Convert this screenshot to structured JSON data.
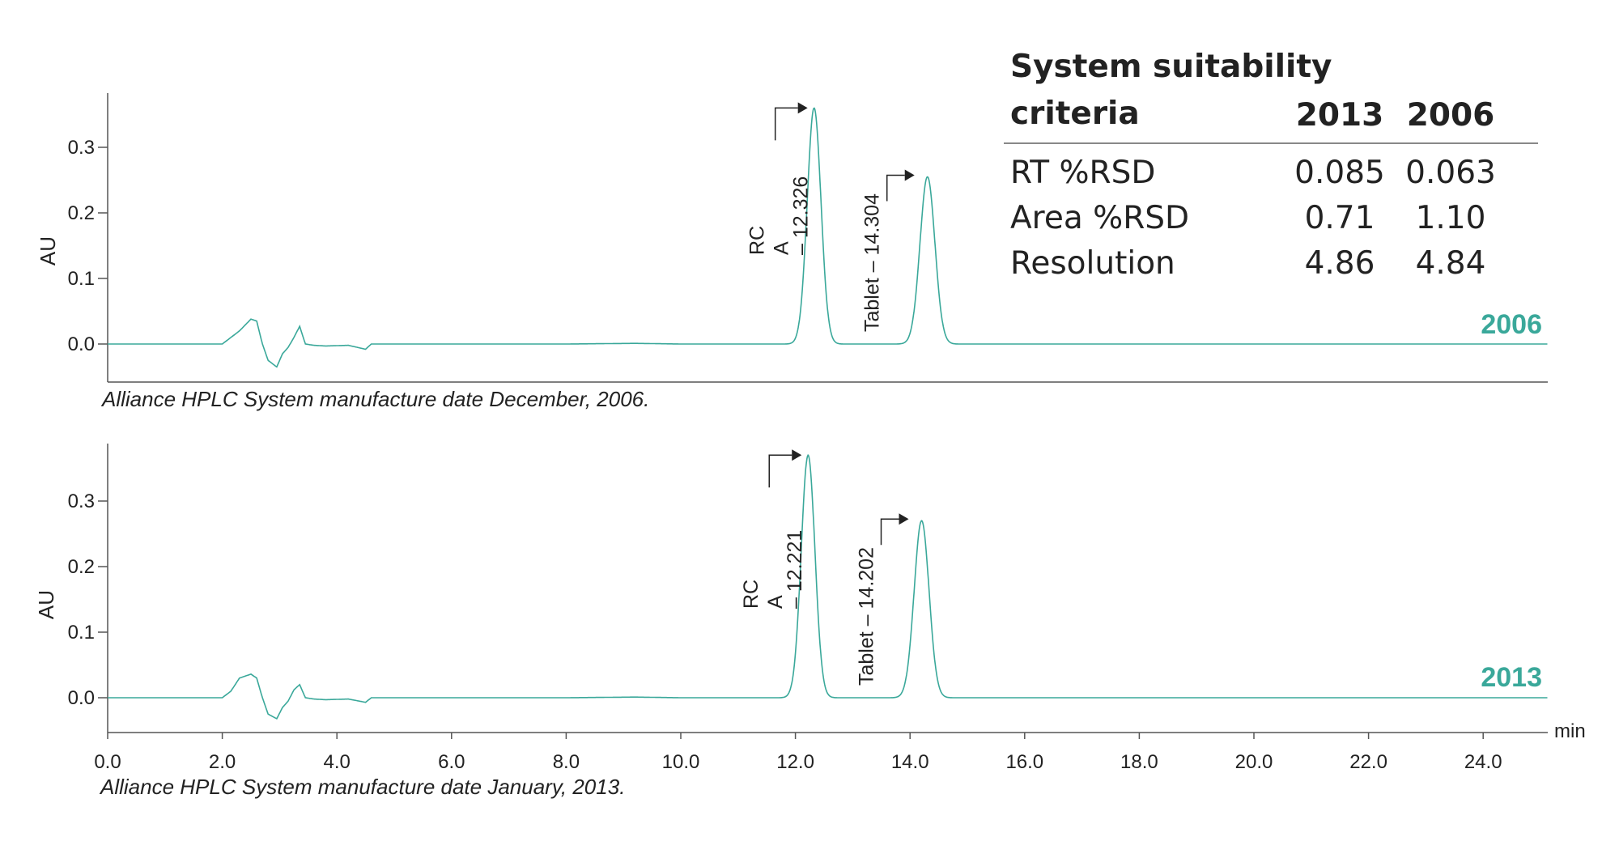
{
  "colors": {
    "trace": "#3aa89a",
    "year_label": "#3aa89a",
    "axis": "#555555",
    "text": "#222222"
  },
  "table": {
    "title": "System suitability criteria",
    "columns": [
      "2013",
      "2006"
    ],
    "rows": [
      {
        "label": "RT %RSD",
        "values": [
          "0.085",
          "0.063"
        ]
      },
      {
        "label": "Area %RSD",
        "values": [
          "0.71",
          "1.10"
        ]
      },
      {
        "label": "Resolution",
        "values": [
          "4.86",
          "4.84"
        ]
      }
    ]
  },
  "captions": {
    "top": "Alliance HPLC System manufacture date December, 2006.",
    "bottom": "Alliance HPLC System manufacture date January, 2013."
  },
  "chart_data": [
    {
      "type": "line",
      "series_label": "2006",
      "ylabel": "AU",
      "xlabel": "",
      "yticks": [
        "0.0",
        "0.1",
        "0.2",
        "0.3"
      ],
      "ylim": [
        -0.06,
        0.38
      ],
      "xlim": [
        0,
        25
      ],
      "peaks": [
        {
          "label_lines": [
            "RC",
            "A",
            "– 12.326"
          ],
          "rt": 12.326,
          "height": 0.36,
          "width": 0.12
        },
        {
          "label_lines": [
            "Tablet – 14.304"
          ],
          "rt": 14.304,
          "height": 0.255,
          "width": 0.13
        }
      ],
      "x": [
        0,
        2.0,
        2.15,
        2.3,
        2.5,
        2.6,
        2.7,
        2.8,
        2.95,
        3.05,
        3.15,
        3.25,
        3.35,
        3.45,
        3.6,
        3.8,
        4.2,
        4.5,
        4.6,
        4.8,
        6,
        8,
        9.2,
        10,
        25
      ],
      "baseline": [
        0,
        0,
        0.01,
        0.02,
        0.038,
        0.035,
        0,
        -0.025,
        -0.035,
        -0.015,
        -0.005,
        0.01,
        0.027,
        0,
        -0.002,
        -0.003,
        -0.002,
        -0.008,
        0,
        0,
        0,
        0,
        0.001,
        0,
        0
      ]
    },
    {
      "type": "line",
      "series_label": "2013",
      "ylabel": "AU",
      "xlabel": "min",
      "xticks": [
        "0.0",
        "2.0",
        "4.0",
        "6.0",
        "8.0",
        "10.0",
        "12.0",
        "14.0",
        "16.0",
        "18.0",
        "20.0",
        "22.0",
        "24.0"
      ],
      "yticks": [
        "0.0",
        "0.1",
        "0.2",
        "0.3"
      ],
      "ylim": [
        -0.06,
        0.38
      ],
      "xlim": [
        0,
        25
      ],
      "peaks": [
        {
          "label_lines": [
            "RC",
            "A",
            "– 12.221"
          ],
          "rt": 12.221,
          "height": 0.37,
          "width": 0.12
        },
        {
          "label_lines": [
            "Tablet – 14.202"
          ],
          "rt": 14.202,
          "height": 0.27,
          "width": 0.13
        }
      ],
      "x": [
        0,
        2.0,
        2.15,
        2.3,
        2.5,
        2.6,
        2.7,
        2.8,
        2.95,
        3.05,
        3.15,
        3.25,
        3.35,
        3.45,
        3.6,
        3.8,
        4.2,
        4.5,
        4.6,
        4.8,
        6,
        8,
        9.2,
        10,
        25
      ],
      "baseline": [
        0,
        0,
        0.01,
        0.03,
        0.036,
        0.03,
        0,
        -0.025,
        -0.032,
        -0.015,
        -0.005,
        0.012,
        0.02,
        0,
        -0.002,
        -0.003,
        -0.002,
        -0.007,
        0,
        0,
        0,
        0,
        0.001,
        0,
        0
      ]
    }
  ]
}
